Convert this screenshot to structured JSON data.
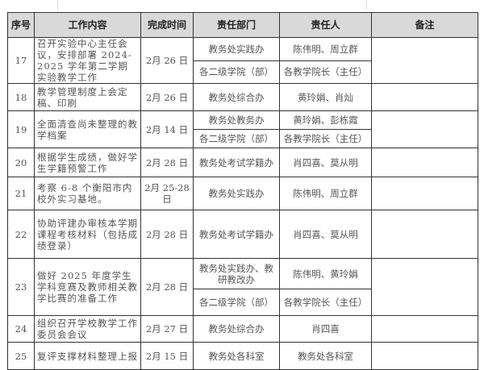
{
  "header": [
    "序号",
    "工作内容",
    "完成时间",
    "责任部门",
    "责任人",
    "备注"
  ],
  "rows": [
    {
      "no": "17",
      "content": "召开实验中心主任会议，安排部署 2024-2025 学年第二学期实验教学工作",
      "date": "2月 26 日",
      "assign": [
        {
          "dept": "教务处实践办",
          "person": "陈伟明、周立群"
        },
        {
          "dept": "各二级学院（部）",
          "person": "各教学院长（主任）"
        }
      ],
      "note": ""
    },
    {
      "no": "18",
      "content": "教学管理制度上会定稿、印刷",
      "date": "2月 26 日",
      "assign": [
        {
          "dept": "教务处综合办",
          "person": "黄玲娟、肖灿"
        }
      ],
      "note": ""
    },
    {
      "no": "19",
      "content": "全面清查尚未整理的教学档案",
      "date": "2月 14 日",
      "assign": [
        {
          "dept": "教务处教务办",
          "person": "黄玲娟、彭栋霞"
        },
        {
          "dept": "各二级学院（部）",
          "person": "各教学院长（主任）"
        }
      ],
      "note": ""
    },
    {
      "no": "20",
      "content": "根据学生成绩，做好学生学籍预警工作",
      "date": "2月 28 日",
      "assign": [
        {
          "dept": "教务处考试学籍办",
          "person": "肖四喜、莫从明"
        }
      ],
      "note": ""
    },
    {
      "no": "21",
      "content": "考察 6-8 个衡阳市内校外实习基地。",
      "date": "2月 25-28 日",
      "assign": [
        {
          "dept": "教务处实践办",
          "person": "陈伟明、周立群"
        }
      ],
      "note": ""
    },
    {
      "no": "22",
      "content": "协助评建办审核本学期课程考核材料（包括成绩登录）",
      "date": "2月 28 日",
      "assign": [
        {
          "dept": "教务处考试学籍办",
          "person": "肖四喜、莫从明"
        }
      ],
      "note": ""
    },
    {
      "no": "23",
      "content": "做好 2025 年度学生学科竞赛及教师相关教学比赛的准备工作",
      "date": "2月 28 日",
      "assign": [
        {
          "dept": "教务处实践办、教研教改办",
          "person": "陈伟明、黄玲娟"
        },
        {
          "dept": "各二级学院（部）",
          "person": "各教学院长（主任）"
        }
      ],
      "note": ""
    },
    {
      "no": "24",
      "content": "组织召开学校教学工作委员会会议",
      "date": "2月 27 日",
      "assign": [
        {
          "dept": "教务处综合办",
          "person": "肖四喜"
        }
      ],
      "note": ""
    },
    {
      "no": "25",
      "content": "复评支撑材料整理上报",
      "date": "2月 15 日",
      "assign": [
        {
          "dept": "教务处各科室",
          "person": "教务处各科室"
        }
      ],
      "note": ""
    }
  ]
}
